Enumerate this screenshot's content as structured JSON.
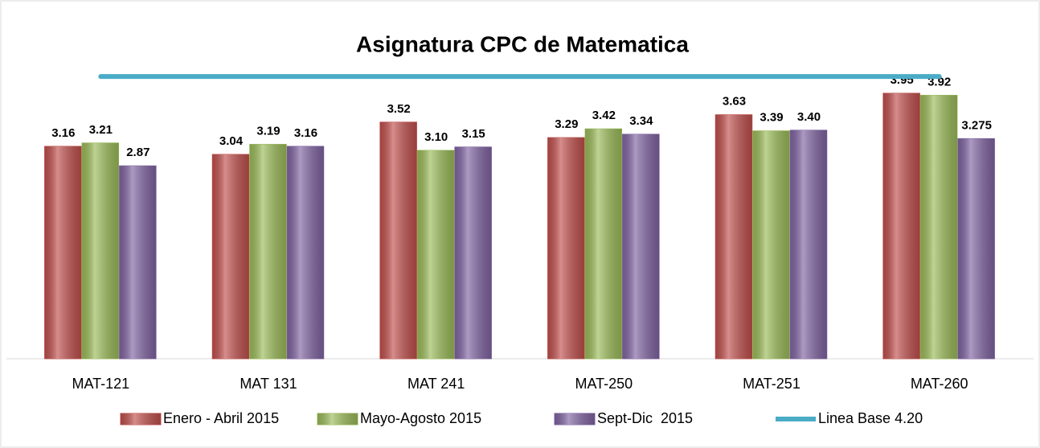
{
  "chart_data": {
    "type": "bar",
    "title": "Asignatura CPC de Matematica",
    "categories": [
      "MAT-121",
      "MAT 131",
      "MAT 241",
      "MAT-250",
      "MAT-251",
      "MAT-260"
    ],
    "ylim": [
      0,
      4.5
    ],
    "series": [
      {
        "name": "Enero - Abril 2015",
        "color": "#c0504d",
        "values": [
          3.16,
          3.04,
          3.52,
          3.29,
          3.63,
          3.95
        ],
        "value_labels": [
          "3.16",
          "3.04",
          "3.52",
          "3.29",
          "3.63",
          "3.95"
        ]
      },
      {
        "name": "Mayo-Agosto 2015",
        "color": "#9bbb59",
        "values": [
          3.21,
          3.19,
          3.1,
          3.42,
          3.39,
          3.92
        ],
        "value_labels": [
          "3.21",
          "3.19",
          "3.10",
          "3.42",
          "3.39",
          "3.92"
        ]
      },
      {
        "name": "Sept-Dic  2015",
        "color": "#8064a2",
        "values": [
          2.87,
          3.16,
          3.15,
          3.34,
          3.4,
          3.275
        ],
        "value_labels": [
          "2.87",
          "3.16",
          "3.15",
          "3.34",
          "3.40",
          "3.275"
        ]
      },
      {
        "name": "Linea Base 4.20",
        "color": "#4bacc6",
        "type": "line",
        "values": [
          4.2,
          4.2,
          4.2,
          4.2,
          4.2,
          4.2
        ]
      }
    ],
    "legend": "bottom"
  }
}
